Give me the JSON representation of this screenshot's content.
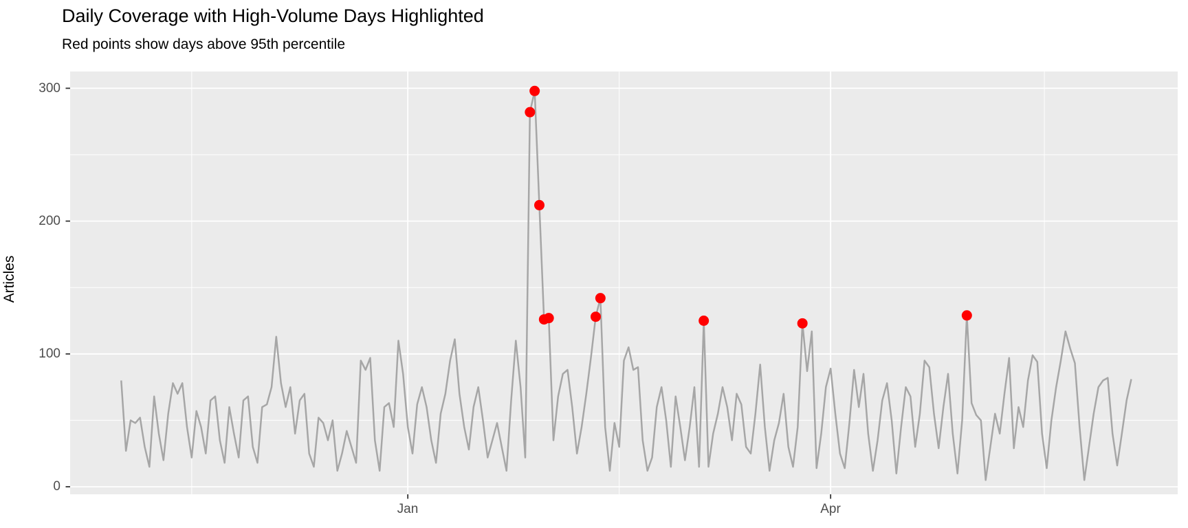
{
  "header": {
    "title": "Daily Coverage with High-Volume Days Highlighted",
    "subtitle": "Red points show days above 95th percentile"
  },
  "chart_data": {
    "type": "line",
    "title": "Daily Coverage with High-Volume Days Highlighted",
    "subtitle": "Red points show days above 95th percentile",
    "xlabel": "",
    "ylabel": "Articles",
    "x_unit": "days_from_jan_1",
    "x_axis": {
      "ticks": [
        {
          "label": "Jan",
          "day": 0
        },
        {
          "label": "Apr",
          "day": 90
        }
      ],
      "minor_gridline_days": [
        -46,
        45,
        135.5
      ],
      "range_days": [
        -71.9,
        164.1
      ]
    },
    "y_axis": {
      "ticks": [
        {
          "label": "0",
          "value": 0
        },
        {
          "label": "100",
          "value": 100
        },
        {
          "label": "200",
          "value": 200
        },
        {
          "label": "300",
          "value": 300
        }
      ],
      "minor_gridline_values": [
        50,
        150,
        250
      ],
      "range": [
        -9.6,
        312.6
      ]
    },
    "grid": "on",
    "legend": "none",
    "series": [
      {
        "name": "daily_articles",
        "start_day": -61,
        "values": [
          80,
          27,
          50,
          48,
          52,
          30,
          15,
          68,
          40,
          20,
          55,
          78,
          70,
          78,
          45,
          22,
          57,
          45,
          25,
          65,
          68,
          35,
          18,
          60,
          40,
          22,
          65,
          68,
          30,
          18,
          60,
          62,
          75,
          113,
          78,
          60,
          75,
          40,
          65,
          70,
          25,
          15,
          52,
          48,
          35,
          50,
          12,
          25,
          42,
          30,
          18,
          95,
          88,
          97,
          35,
          12,
          60,
          63,
          45,
          110,
          85,
          45,
          25,
          62,
          75,
          60,
          35,
          18,
          55,
          70,
          95,
          111,
          70,
          45,
          28,
          60,
          75,
          50,
          22,
          35,
          48,
          30,
          12,
          65,
          110,
          75,
          22,
          282,
          298,
          212,
          126,
          127,
          35,
          68,
          85,
          88,
          60,
          25,
          45,
          70,
          98,
          128,
          142,
          45,
          12,
          48,
          30,
          95,
          105,
          88,
          90,
          35,
          12,
          22,
          60,
          75,
          50,
          15,
          68,
          45,
          20,
          45,
          75,
          15,
          125,
          15,
          40,
          55,
          75,
          60,
          35,
          70,
          62,
          30,
          25,
          55,
          92,
          45,
          12,
          35,
          48,
          70,
          30,
          15,
          45,
          123,
          87,
          117,
          14,
          40,
          75,
          89,
          55,
          25,
          14,
          48,
          88,
          60,
          85,
          40,
          12,
          35,
          65,
          78,
          50,
          10,
          45,
          75,
          68,
          30,
          55,
          95,
          90,
          55,
          29,
          60,
          85,
          40,
          10,
          50,
          129,
          63,
          54,
          50,
          5,
          30,
          55,
          40,
          70,
          97,
          29,
          60,
          45,
          80,
          99,
          94,
          40,
          14,
          50,
          75,
          95,
          117,
          104,
          93,
          45,
          5,
          30,
          55,
          75,
          80,
          82,
          40,
          16,
          40,
          65,
          81
        ]
      }
    ],
    "highlights": {
      "name": "days_above_95th_percentile",
      "points": [
        {
          "day": 26,
          "value": 282
        },
        {
          "day": 27,
          "value": 298
        },
        {
          "day": 28,
          "value": 212
        },
        {
          "day": 29,
          "value": 126
        },
        {
          "day": 30,
          "value": 127
        },
        {
          "day": 40,
          "value": 128
        },
        {
          "day": 41,
          "value": 142
        },
        {
          "day": 63,
          "value": 125
        },
        {
          "day": 84,
          "value": 123
        },
        {
          "day": 119,
          "value": 129
        }
      ]
    },
    "colors": {
      "line": "#A6A6A6",
      "highlight": "#FF0000",
      "panel_background": "#EBEBEB",
      "plot_background": "#FFFFFF",
      "gridline": "#FFFFFF",
      "axis_text": "#4D4D4D",
      "title_text": "#000000",
      "tick_mark": "#333333"
    }
  }
}
